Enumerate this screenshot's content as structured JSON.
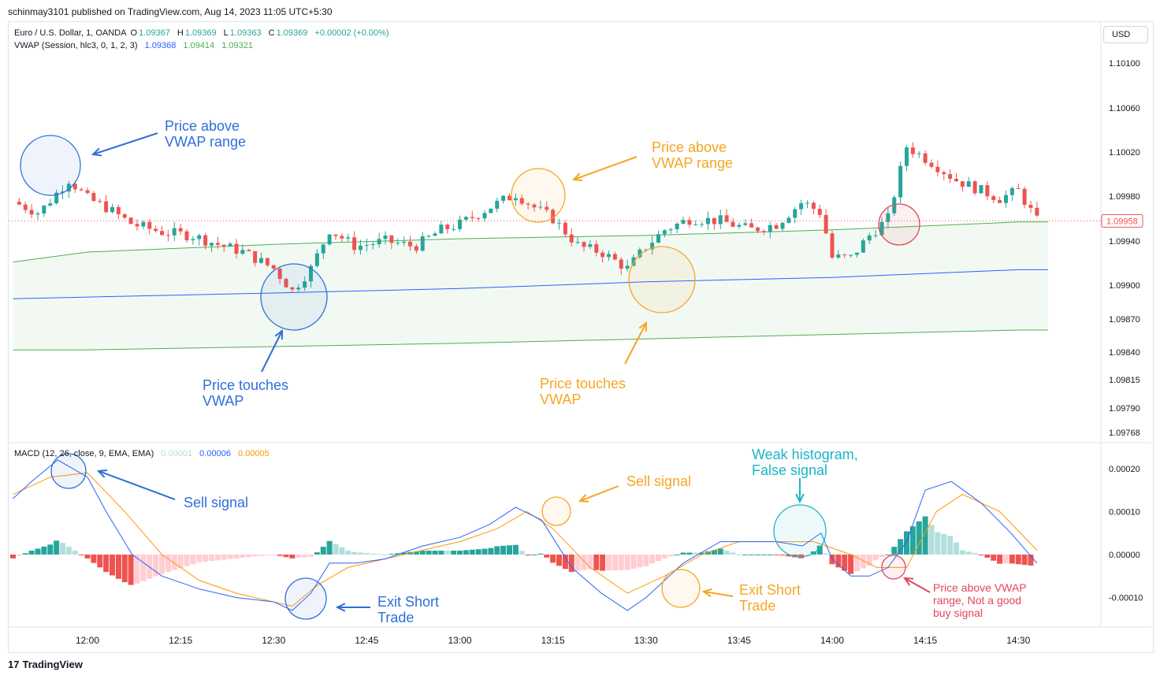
{
  "header": {
    "published": "schinmay3101 published on TradingView.com, Aug 14, 2023 11:05 UTC+5:30"
  },
  "legend": {
    "symbol": "Euro / U.S. Dollar, 1, OANDA",
    "o_label": "O",
    "o": "1.09367",
    "h_label": "H",
    "h": "1.09369",
    "l_label": "L",
    "l": "1.09363",
    "c_label": "C",
    "c": "1.09369",
    "change": "+0.00002 (+0.00%)",
    "vwap_label": "VWAP (Session, hlc3, 0, 1, 2, 3)",
    "vwap_v1": "1.09368",
    "vwap_v2": "1.09414",
    "vwap_v3": "1.09321",
    "macd_label": "MACD (12, 26, close, 9, EMA, EMA)",
    "macd_v1": "0.00001",
    "macd_v2": "0.00006",
    "macd_v3": "0.00005"
  },
  "currency_button": "USD",
  "footer": {
    "logo": "17",
    "brand": "TradingView"
  },
  "colors": {
    "up": "#26a69a",
    "down": "#ef5350",
    "vwap": "#2962ff",
    "band": "#4caf50",
    "signal": "#ff9800",
    "hist_up_light": "#b2dfdb",
    "hist_down_light": "#ffcdd2",
    "blue_note": "#2f6fd8",
    "orange_note": "#f5a623",
    "teal_note": "#1cb5c6",
    "red_note": "#e0475a"
  },
  "annotations": [
    {
      "id": "ann-price-above-1",
      "text": "Price above\nVWAP range",
      "color": "blue_note"
    },
    {
      "id": "ann-price-touches-1",
      "text": "Price touches\nVWAP",
      "color": "blue_note"
    },
    {
      "id": "ann-price-above-2",
      "text": "Price above\nVWAP range",
      "color": "orange_note"
    },
    {
      "id": "ann-price-touches-2",
      "text": "Price touches\nVWAP",
      "color": "orange_note"
    },
    {
      "id": "ann-sell-1",
      "text": "Sell signal",
      "color": "blue_note"
    },
    {
      "id": "ann-exit-1",
      "text": "Exit Short\nTrade",
      "color": "blue_note"
    },
    {
      "id": "ann-sell-2",
      "text": "Sell signal",
      "color": "orange_note"
    },
    {
      "id": "ann-exit-2",
      "text": "Exit Short\nTrade",
      "color": "orange_note"
    },
    {
      "id": "ann-weak",
      "text": "Weak histogram,\nFalse signal",
      "color": "teal_note"
    },
    {
      "id": "ann-red",
      "text": "Price above VWAP\nrange, Not a good\nbuy signal",
      "color": "red_note"
    }
  ],
  "chart_data": [
    {
      "type": "candlestick",
      "title": "Euro / U.S. Dollar, 1, OANDA",
      "x_ticks": [
        "12:00",
        "12:15",
        "12:30",
        "12:45",
        "13:00",
        "13:15",
        "13:30",
        "13:45",
        "14:00",
        "14:15",
        "14:30"
      ],
      "y_ticks": [
        "1.10100",
        "1.10060",
        "1.10020",
        "1.09980",
        "1.09940",
        "1.09900",
        "1.09870",
        "1.09840",
        "1.09815",
        "1.09790",
        "1.09768"
      ],
      "last_price": "1.09958",
      "close_trace": [
        [
          11.8,
          1.09975
        ],
        [
          11.87,
          1.09965
        ],
        [
          11.95,
          1.09995
        ],
        [
          12.0,
          1.09978
        ],
        [
          12.05,
          1.0997
        ],
        [
          12.12,
          1.09955
        ],
        [
          12.2,
          1.09948
        ],
        [
          12.28,
          1.09945
        ],
        [
          12.35,
          1.09937
        ],
        [
          12.42,
          1.0993
        ],
        [
          12.5,
          1.09915
        ],
        [
          12.55,
          1.09895
        ],
        [
          12.6,
          1.09915
        ],
        [
          12.65,
          1.0995
        ],
        [
          12.72,
          1.09935
        ],
        [
          12.8,
          1.0994
        ],
        [
          12.88,
          1.09935
        ],
        [
          12.95,
          1.0995
        ],
        [
          13.0,
          1.09955
        ],
        [
          13.08,
          1.0997
        ],
        [
          13.15,
          1.09982
        ],
        [
          13.2,
          1.0997
        ],
        [
          13.25,
          1.0996
        ],
        [
          13.32,
          1.09935
        ],
        [
          13.38,
          1.0993
        ],
        [
          13.45,
          1.09915
        ],
        [
          13.5,
          1.09935
        ],
        [
          13.55,
          1.0995
        ],
        [
          13.62,
          1.0996
        ],
        [
          13.7,
          1.09958
        ],
        [
          13.78,
          1.0995
        ],
        [
          13.85,
          1.09955
        ],
        [
          13.92,
          1.09975
        ],
        [
          13.97,
          1.09965
        ],
        [
          14.0,
          1.09925
        ],
        [
          14.05,
          1.09925
        ],
        [
          14.1,
          1.09945
        ],
        [
          14.15,
          1.0996
        ],
        [
          14.2,
          1.10025
        ],
        [
          14.27,
          1.1001
        ],
        [
          14.33,
          1.09995
        ],
        [
          14.4,
          1.09985
        ],
        [
          14.45,
          1.09978
        ],
        [
          14.5,
          1.09985
        ],
        [
          14.55,
          1.09958
        ]
      ],
      "vwap": [
        [
          11.8,
          1.09888
        ],
        [
          12.5,
          1.09893
        ],
        [
          13.0,
          1.09897
        ],
        [
          13.5,
          1.09903
        ],
        [
          14.0,
          1.09907
        ],
        [
          14.5,
          1.09914
        ],
        [
          14.58,
          1.09914
        ]
      ],
      "upper_band": [
        [
          11.8,
          1.09921
        ],
        [
          12.0,
          1.0993
        ],
        [
          12.5,
          1.09937
        ],
        [
          13.0,
          1.09942
        ],
        [
          13.5,
          1.09945
        ],
        [
          14.0,
          1.0995
        ],
        [
          14.5,
          1.09957
        ],
        [
          14.58,
          1.09957
        ]
      ],
      "lower_band": [
        [
          11.8,
          1.09842
        ],
        [
          12.0,
          1.09842
        ],
        [
          12.5,
          1.09845
        ],
        [
          13.0,
          1.09848
        ],
        [
          13.5,
          1.09852
        ],
        [
          14.0,
          1.09856
        ],
        [
          14.5,
          1.0986
        ],
        [
          14.58,
          1.0986
        ]
      ]
    },
    {
      "type": "line",
      "title": "MACD (12, 26, close, 9, EMA, EMA)",
      "x_ticks": [
        "12:00",
        "12:15",
        "12:30",
        "12:45",
        "13:00",
        "13:15",
        "13:30",
        "13:45",
        "14:00",
        "14:15",
        "14:30"
      ],
      "y_ticks": [
        "0.00020",
        "0.00010",
        "0.00000",
        "-0.00010"
      ],
      "series": [
        {
          "role": "macd",
          "points": [
            [
              11.8,
              0.00013
            ],
            [
              11.85,
              0.00017
            ],
            [
              11.92,
              0.00022
            ],
            [
              12.0,
              0.00018
            ],
            [
              12.05,
              0.0001
            ],
            [
              12.12,
              0.0
            ],
            [
              12.2,
              -5e-05
            ],
            [
              12.3,
              -8e-05
            ],
            [
              12.4,
              -0.0001
            ],
            [
              12.5,
              -0.00011
            ],
            [
              12.55,
              -0.00013
            ],
            [
              12.6,
              -9e-05
            ],
            [
              12.65,
              -2e-05
            ],
            [
              12.72,
              -2e-05
            ],
            [
              12.8,
              -1e-05
            ],
            [
              12.9,
              2e-05
            ],
            [
              13.0,
              4e-05
            ],
            [
              13.08,
              7e-05
            ],
            [
              13.15,
              0.00011
            ],
            [
              13.22,
              8e-05
            ],
            [
              13.3,
              -3e-05
            ],
            [
              13.38,
              -9e-05
            ],
            [
              13.45,
              -0.00013
            ],
            [
              13.5,
              -0.0001
            ],
            [
              13.6,
              -2e-05
            ],
            [
              13.7,
              3e-05
            ],
            [
              13.78,
              3e-05
            ],
            [
              13.85,
              3e-05
            ],
            [
              13.92,
              2e-05
            ],
            [
              13.97,
              5e-05
            ],
            [
              14.0,
              -1e-05
            ],
            [
              14.05,
              -5e-05
            ],
            [
              14.1,
              -5e-05
            ],
            [
              14.15,
              -3e-05
            ],
            [
              14.2,
              3e-05
            ],
            [
              14.25,
              0.00015
            ],
            [
              14.32,
              0.00017
            ],
            [
              14.4,
              0.00012
            ],
            [
              14.48,
              5e-05
            ],
            [
              14.55,
              -2e-05
            ]
          ]
        },
        {
          "role": "signal",
          "points": [
            [
              11.8,
              0.00014
            ],
            [
              11.9,
              0.00018
            ],
            [
              12.0,
              0.00019
            ],
            [
              12.1,
              0.0001
            ],
            [
              12.2,
              0.0
            ],
            [
              12.3,
              -6e-05
            ],
            [
              12.4,
              -9e-05
            ],
            [
              12.5,
              -0.00011
            ],
            [
              12.55,
              -0.00012
            ],
            [
              12.62,
              -7e-05
            ],
            [
              12.7,
              -3e-05
            ],
            [
              12.8,
              -1e-05
            ],
            [
              12.9,
              1e-05
            ],
            [
              13.0,
              3e-05
            ],
            [
              13.1,
              6e-05
            ],
            [
              13.18,
              0.0001
            ],
            [
              13.25,
              6e-05
            ],
            [
              13.35,
              -3e-05
            ],
            [
              13.45,
              -9e-05
            ],
            [
              13.55,
              -5e-05
            ],
            [
              13.65,
              0.0
            ],
            [
              13.75,
              3e-05
            ],
            [
              13.85,
              3e-05
            ],
            [
              13.95,
              3e-05
            ],
            [
              14.05,
              0.0
            ],
            [
              14.12,
              -3e-05
            ],
            [
              14.2,
              -3e-05
            ],
            [
              14.28,
              0.0001
            ],
            [
              14.35,
              0.00014
            ],
            [
              14.45,
              0.0001
            ],
            [
              14.55,
              1e-05
            ]
          ]
        }
      ]
    }
  ]
}
